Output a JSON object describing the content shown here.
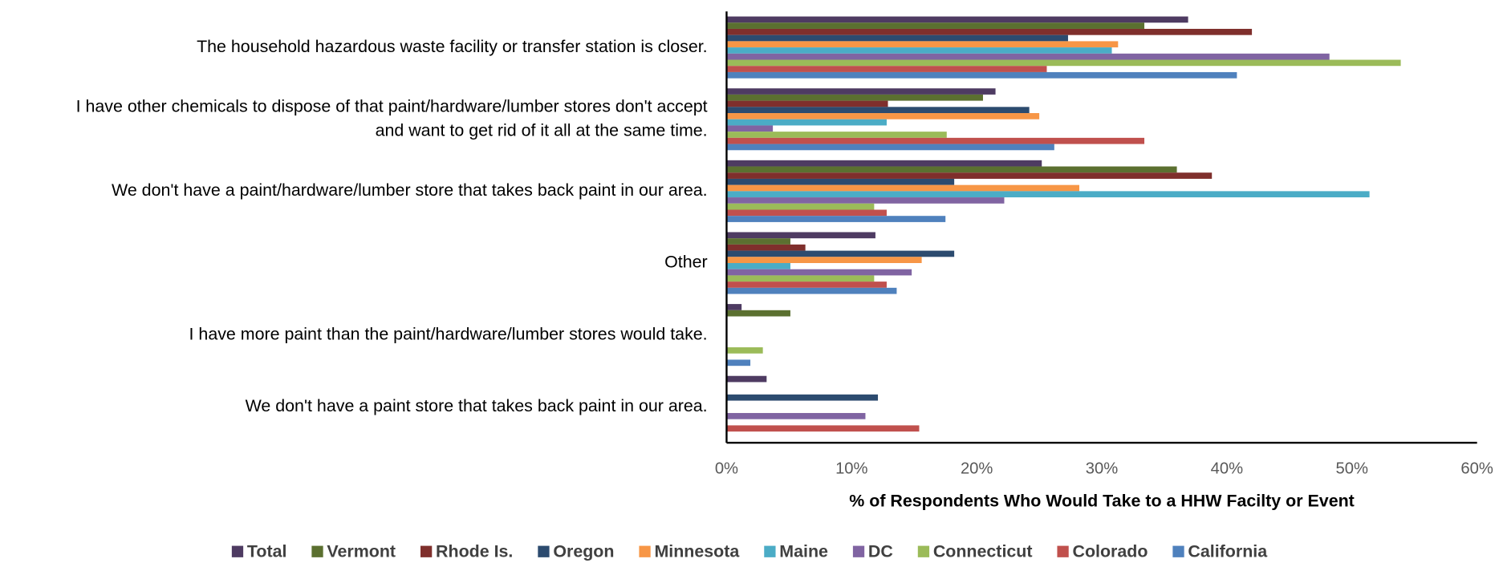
{
  "chart_data": {
    "type": "hbar",
    "xlabel": "% of Respondents Who Would Take to a HHW Facilty or Event",
    "categories": [
      "The household hazardous waste facility or transfer station is closer.",
      "I have other chemicals to dispose of that paint/hardware/lumber stores don't accept\nand want to get rid of it all at the same time.",
      "We don't have a paint/hardware/lumber store that takes back paint in our area.",
      "Other",
      "I have more paint than the paint/hardware/lumber stores would take.",
      "We don't have a paint store that takes back paint in our area."
    ],
    "series": [
      {
        "name": "Total",
        "color": "#4e3b62",
        "values": [
          36.9,
          21.5,
          25.2,
          11.9,
          1.2,
          3.2
        ]
      },
      {
        "name": "Vermont",
        "color": "#5b7030",
        "values": [
          33.4,
          20.5,
          36.0,
          5.1,
          5.1,
          null
        ]
      },
      {
        "name": "Rhode Is.",
        "color": "#7f2f2c",
        "values": [
          42.0,
          12.9,
          38.8,
          6.3,
          null,
          null
        ]
      },
      {
        "name": "Oregon",
        "color": "#2c4b6f",
        "values": [
          27.3,
          24.2,
          18.2,
          18.2,
          null,
          12.1
        ]
      },
      {
        "name": "Minnesota",
        "color": "#f79646",
        "values": [
          31.3,
          25.0,
          28.2,
          15.6,
          null,
          null
        ]
      },
      {
        "name": "Maine",
        "color": "#4bacc6",
        "values": [
          30.8,
          12.8,
          51.4,
          5.1,
          null,
          null
        ]
      },
      {
        "name": "DC",
        "color": "#8064a2",
        "values": [
          48.2,
          3.7,
          22.2,
          14.8,
          null,
          11.1
        ]
      },
      {
        "name": "Connecticut",
        "color": "#9bbb59",
        "values": [
          53.9,
          17.6,
          11.8,
          11.8,
          2.9,
          null
        ]
      },
      {
        "name": "Colorado",
        "color": "#c0504d",
        "values": [
          25.6,
          33.4,
          12.8,
          12.8,
          null,
          15.4
        ]
      },
      {
        "name": "California",
        "color": "#4f81bd",
        "values": [
          40.8,
          26.2,
          17.5,
          13.6,
          1.9,
          null
        ]
      }
    ],
    "xlim": [
      0,
      60
    ],
    "xticks": [
      {
        "value": 0,
        "label": "0%"
      },
      {
        "value": 10,
        "label": "10%"
      },
      {
        "value": 20,
        "label": "20%"
      },
      {
        "value": 30,
        "label": "30%"
      },
      {
        "value": 40,
        "label": "40%"
      },
      {
        "value": 50,
        "label": "50%"
      },
      {
        "value": 60,
        "label": "60%"
      }
    ],
    "grid": false,
    "legend": "bottom"
  }
}
